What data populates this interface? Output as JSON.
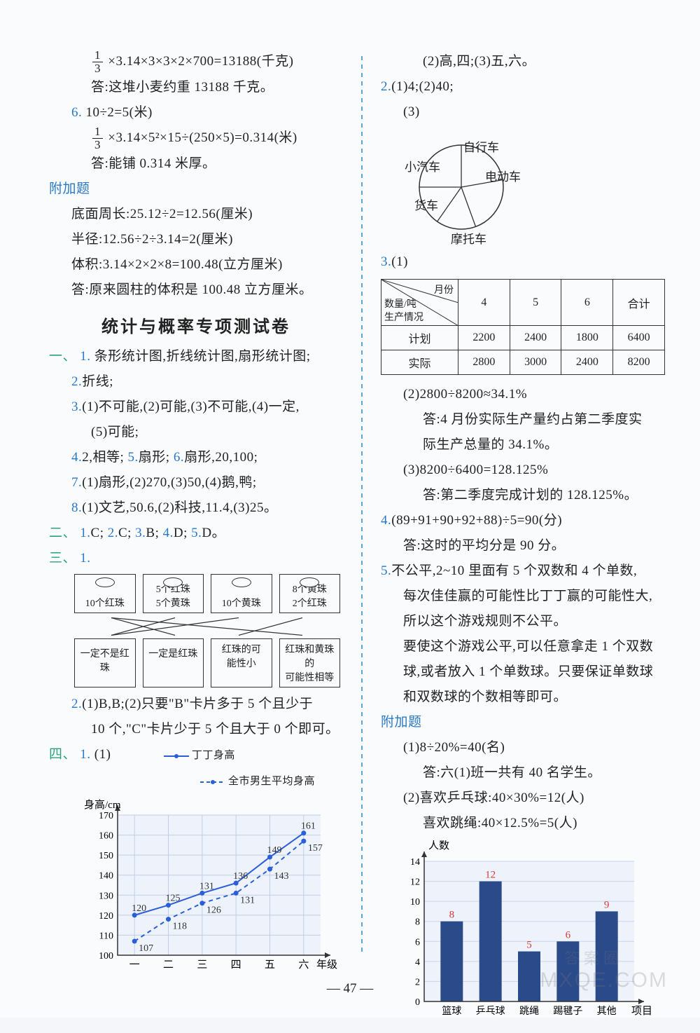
{
  "left": {
    "l1_frac_top": "1",
    "l1_frac_bot": "3",
    "l1": "×3.14×3×3×2×700=13188(千克)",
    "l2": "答:这堆小麦约重 13188 千克。",
    "n6": "6.",
    "l3": "10÷2=5(米)",
    "l4_frac_top": "1",
    "l4_frac_bot": "3",
    "l4": "×3.14×5²×15÷(250×5)=0.314(米)",
    "l5": "答:能铺 0.314 米厚。",
    "fujia": "附加题",
    "l6": "底面周长:25.12÷2=12.56(厘米)",
    "l7": "半径:12.56÷2÷3.14=2(厘米)",
    "l8": "体积:3.14×2×2×8=100.48(立方厘米)",
    "l9": "答:原来圆柱的体积是 100.48 立方厘米。",
    "title": "统计与概率专项测试卷",
    "yi": "一、",
    "n1": "1.",
    "y1": "条形统计图,折线统计图,扇形统计图;",
    "n2": "2.",
    "y2": "折线;",
    "n3": "3.",
    "y3a": "(1)不可能,(2)可能,(3)不可能,(4)一定,",
    "y3b": "(5)可能;",
    "n4": "4.",
    "y4": "2,相等;",
    "n5": "5.",
    "y5": "扇形;",
    "n6b": "6.",
    "y6": "扇形,20,100;",
    "n7": "7.",
    "y7": "(1)扇形,(2)270,(3)50,(4)鹅,鸭;",
    "n8": "8.",
    "y8": "(1)文艺,50.6,(2)科技,11.4,(3)25。",
    "er": "二、",
    "e1": "1.",
    "ev1": "C;",
    "e2": "2.",
    "ev2": "C;",
    "e3": "3.",
    "ev3": "B;",
    "e4": "4.",
    "ev4": "D;",
    "e5": "5.",
    "ev5": "D。",
    "san": "三、",
    "s1": "1.",
    "box1a": "10个红珠",
    "box2a": "5个红珠",
    "box2b": "5个黄珠",
    "box3a": "10个黄珠",
    "box4a": "8个黄珠",
    "box4b": "2个红珠",
    "bb1": "一定不是红珠",
    "bb2": "一定是红珠",
    "bb3a": "红珠的可",
    "bb3b": "能性小",
    "bb4a": "红珠和黄珠的",
    "bb4b": "可能性相等",
    "s2": "2.",
    "sv2a": "(1)B,B;(2)只要\"B\"卡片多于 5 个且少于",
    "sv2b": "10 个,\"C\"卡片少于 5 个且大于 0 个即可。",
    "si": "四、",
    "si1": "1.",
    "siv1": "(1)",
    "legend1": "丁丁身高",
    "legend2": "全市男生平均身高",
    "ylabel": "身高/cm",
    "xlabel": "年级",
    "linechart": {
      "yticks": [
        "100",
        "110",
        "120",
        "130",
        "140",
        "150",
        "160",
        "170"
      ],
      "xticks": [
        "一",
        "二",
        "三",
        "四",
        "五",
        "六"
      ],
      "series1": {
        "values": [
          120,
          125,
          131,
          136,
          149,
          161
        ],
        "color": "#2b5fd9"
      },
      "series2": {
        "values": [
          107,
          118,
          126,
          131,
          143,
          157
        ],
        "color": "#2b5fd9",
        "dashed": true
      },
      "grid_color": "#bfcfe5",
      "bg": "#eef3fb"
    }
  },
  "right": {
    "r1": "(2)高,四;(3)五,六。",
    "n2": "2.",
    "r2": "(1)4;(2)40;",
    "r3": "(3)",
    "pie": {
      "labels": [
        "自行车",
        "电动车",
        "摩托车",
        "货车",
        "小汽车"
      ],
      "angles": [
        [
          270,
          360
        ],
        [
          0,
          80
        ],
        [
          80,
          160
        ],
        [
          160,
          215
        ],
        [
          215,
          270
        ]
      ],
      "stroke": "#333"
    },
    "n3": "3.",
    "r4": "(1)",
    "table": {
      "diag": [
        "月份",
        "数量/吨",
        "生产情况"
      ],
      "cols": [
        "4",
        "5",
        "6",
        "合计"
      ],
      "rows": [
        {
          "h": "计划",
          "c": [
            "2200",
            "2400",
            "1800",
            "6400"
          ]
        },
        {
          "h": "实际",
          "c": [
            "2800",
            "3000",
            "2400",
            "8200"
          ]
        }
      ]
    },
    "r5": "(2)2800÷8200≈34.1%",
    "r6": "答:4 月份实际生产量约占第二季度实",
    "r6b": "际生产总量的 34.1%。",
    "r7": "(3)8200÷6400=128.125%",
    "r8": "答:第二季度完成计划的 128.125%。",
    "n4": "4.",
    "r9": "(89+91+90+92+88)÷5=90(分)",
    "r10": "答:这时的平均分是 90 分。",
    "n5": "5.",
    "r11": "不公平,2~10 里面有 5 个双数和 4 个单数,",
    "r12": "每次佳佳赢的可能性比丁丁赢的可能性大,",
    "r13": "所以这个游戏规则不公平。",
    "r14": "要使这个游戏公平,可以任意拿走 1 个双数",
    "r15": "球,或者放入 1 个单数球。只要保证单数球",
    "r16": "和双数球的个数相等即可。",
    "fujia": "附加题",
    "r17": "(1)8÷20%=40(名)",
    "r18": "答:六(1)班一共有 40 名学生。",
    "r19": "(2)喜欢乒乓球:40×30%=12(人)",
    "r20": "喜欢跳绳:40×12.5%=5(人)",
    "barchart": {
      "ylabel": "人数",
      "xlabel": "项目",
      "yticks": [
        "0",
        "2",
        "4",
        "6",
        "8",
        "10",
        "12",
        "14"
      ],
      "categories": [
        "篮球",
        "乒乓球",
        "跳绳",
        "踢毽子",
        "其他"
      ],
      "values": [
        8,
        12,
        5,
        6,
        9
      ],
      "bar_color": "#2b4a8a",
      "grid_color": "#c8d5ea",
      "bg": "#eef3fb",
      "value_color": "#d43a3a"
    }
  },
  "pagenum": "47",
  "watermark1": "答案圈",
  "watermark2": "MXQE.COM"
}
